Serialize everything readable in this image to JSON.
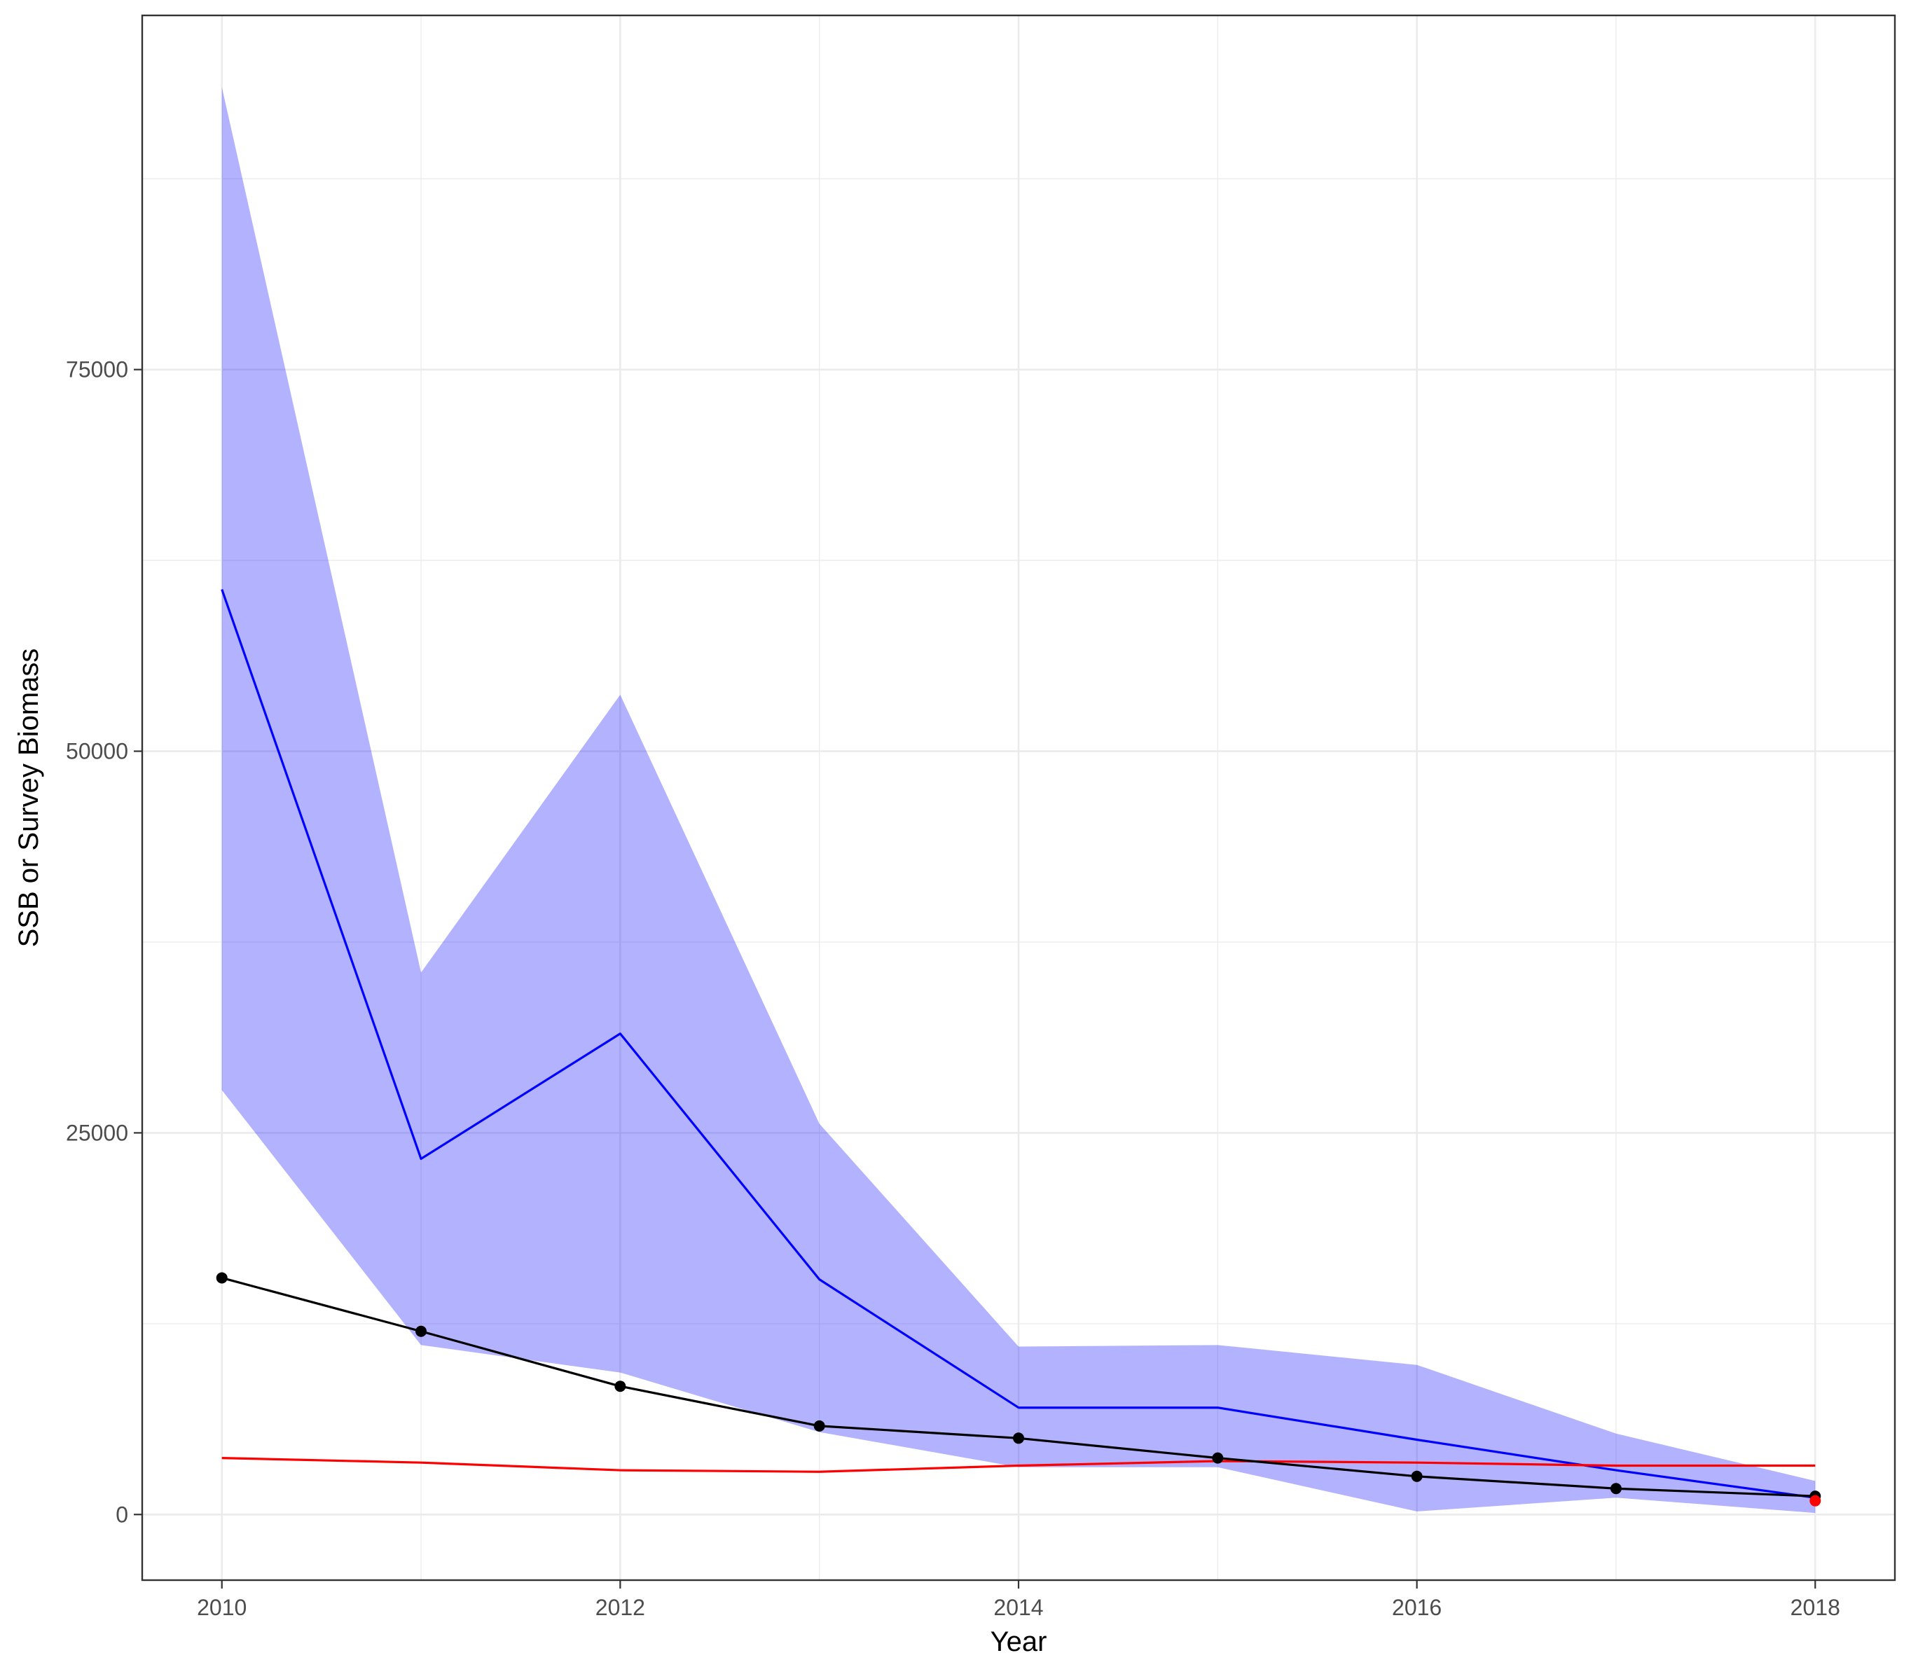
{
  "chart_data": {
    "type": "line",
    "title": "",
    "xlabel": "Year",
    "ylabel": "SSB or Survey Biomass",
    "x": [
      2010,
      2011,
      2012,
      2013,
      2014,
      2015,
      2016,
      2017,
      2018
    ],
    "xlim": [
      2009.6,
      2018.4
    ],
    "ylim": [
      -4300,
      98200
    ],
    "x_ticks": [
      2010,
      2012,
      2014,
      2016,
      2018
    ],
    "x_tick_labels": [
      "2010",
      "2012",
      "2014",
      "2016",
      "2018"
    ],
    "y_ticks": [
      0,
      25000,
      50000,
      75000
    ],
    "y_tick_labels": [
      "0",
      "25000",
      "50000",
      "75000"
    ],
    "grid": true,
    "legend": "none",
    "series": [
      {
        "type": "ribbon",
        "color": "#0000ff",
        "opacity": 0.3,
        "lower": [
          27800,
          11100,
          9300,
          5400,
          3100,
          3100,
          200,
          1100,
          100
        ],
        "upper": [
          93500,
          35500,
          53700,
          25600,
          11000,
          11100,
          9800,
          5300,
          2200
        ]
      },
      {
        "type": "line",
        "color": "#0000ff",
        "values": [
          60600,
          23300,
          31500,
          15400,
          7000,
          7000,
          4900,
          2900,
          1100
        ]
      },
      {
        "type": "line",
        "color": "#ff0000",
        "values": [
          3700,
          3400,
          2900,
          2800,
          3200,
          3500,
          3400,
          3200,
          3200
        ]
      },
      {
        "type": "line_points",
        "color": "#000000",
        "values": [
          15500,
          12000,
          8400,
          5800,
          5000,
          3700,
          2500,
          1700,
          1200
        ]
      },
      {
        "type": "points",
        "color": "#ff0000",
        "x": [
          2018
        ],
        "values": [
          900
        ]
      }
    ]
  }
}
